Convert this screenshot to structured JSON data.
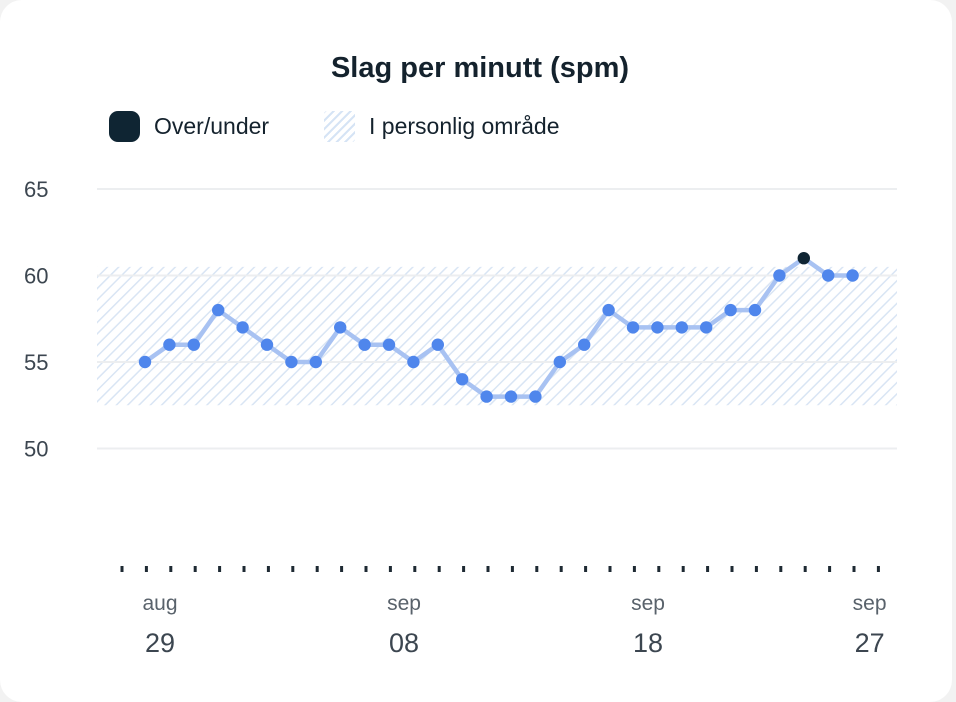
{
  "chart_data": {
    "type": "line",
    "title": "Slag per minutt (spm)",
    "legend": [
      {
        "label": "Over/under",
        "color": "#0f2533"
      },
      {
        "label": "I personlig område",
        "color": "#d6e4f5"
      }
    ],
    "legend_placement": "top-left",
    "personal_range": [
      52.5,
      60.5
    ],
    "y_ticks": [
      50,
      55,
      60,
      65
    ],
    "ylim": [
      43.5,
      65
    ],
    "x_tick_labels": [
      {
        "month": "aug",
        "day": "29",
        "index": 1
      },
      {
        "month": "sep",
        "day": "08",
        "index": 11
      },
      {
        "month": "sep",
        "day": "18",
        "index": 21
      },
      {
        "month": "sep",
        "day": "27",
        "index": 30
      }
    ],
    "x_count": 30,
    "values": [
      55,
      56,
      56,
      58,
      57,
      56,
      55,
      55,
      57,
      56,
      56,
      55,
      56,
      54,
      53,
      53,
      53,
      55,
      56,
      58,
      57,
      57,
      57,
      57,
      58,
      58,
      60,
      61,
      60,
      60
    ],
    "line_color": "#a8c2f2",
    "point_color": "#4f86ec",
    "out_of_range_color": "#0f2533",
    "grid": true
  }
}
